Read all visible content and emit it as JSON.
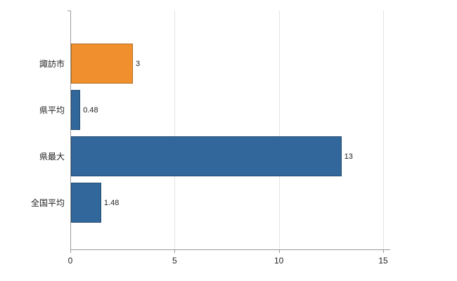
{
  "chart_data": {
    "type": "bar",
    "orientation": "horizontal",
    "title": "",
    "xlabel": "",
    "ylabel": "",
    "categories": [
      "諏訪市",
      "県平均",
      "県最大",
      "全国平均"
    ],
    "values": [
      3,
      0.48,
      13,
      1.48
    ],
    "value_labels": [
      "3",
      "0.48",
      "13",
      "1.48"
    ],
    "bar_colors": [
      "#ef8f2e",
      "#31679b",
      "#31679b",
      "#31679b"
    ],
    "xlim": [
      0,
      15
    ],
    "x_ticks": [
      0,
      5,
      10,
      15
    ],
    "gridlines": [
      5,
      10,
      15
    ],
    "grid": true,
    "legend": null
  },
  "colors": {
    "orange": "#ef8f2e",
    "blue": "#31679b",
    "grid": "#e3e3e3",
    "axis": "#9a9a9a",
    "text": "#222222",
    "background": "#ffffff"
  }
}
